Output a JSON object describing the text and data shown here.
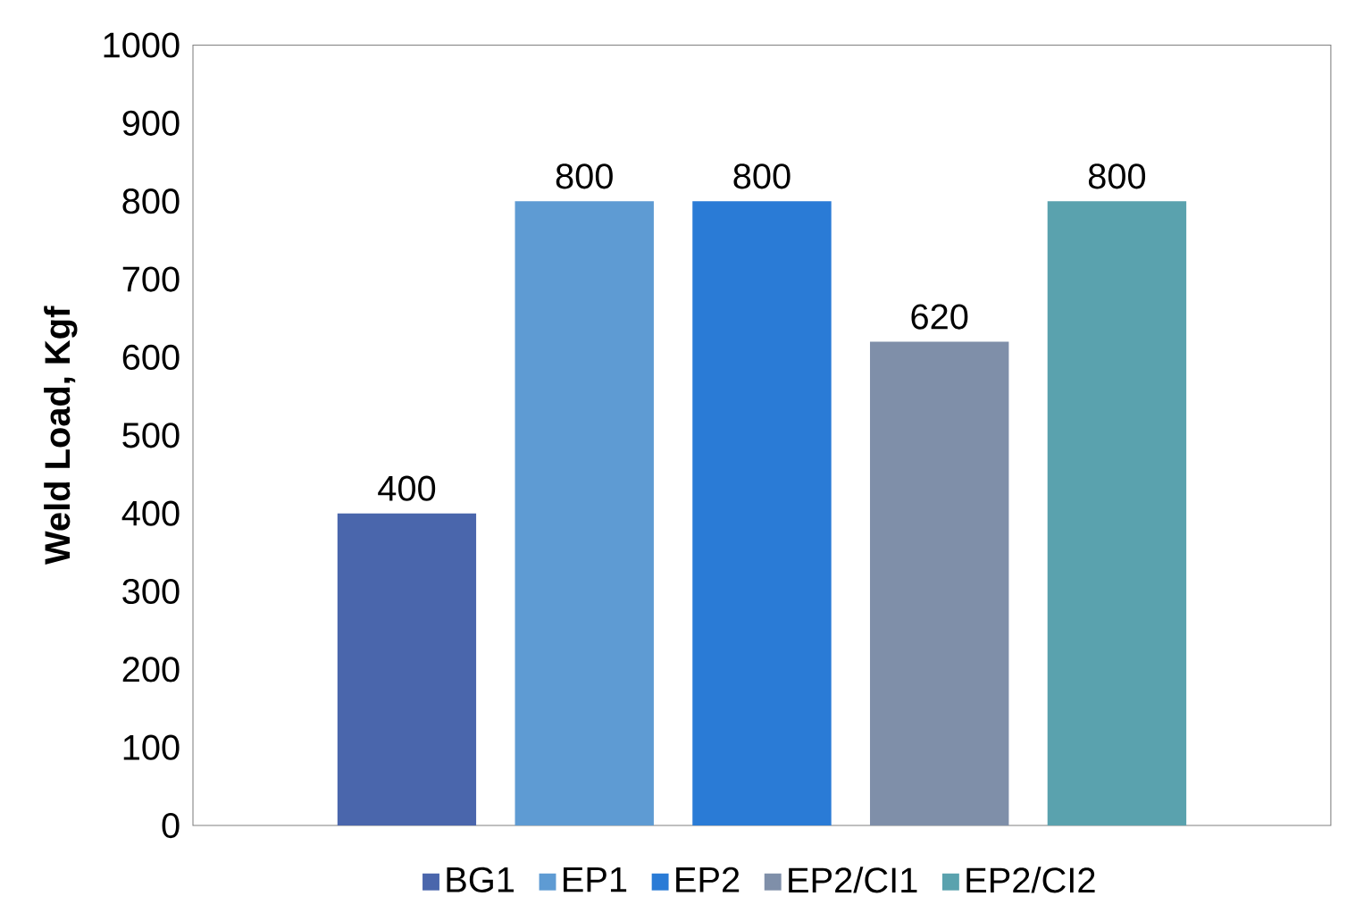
{
  "chart_data": {
    "type": "bar",
    "ylabel": "Weld Load, Kgf",
    "categories": [
      null
    ],
    "series": [
      {
        "name": "BG1",
        "color": "#4a66ac",
        "values": [
          400
        ]
      },
      {
        "name": "EP1",
        "color": "#5e9bd3",
        "values": [
          800
        ]
      },
      {
        "name": "EP2",
        "color": "#2a7bd6",
        "values": [
          800
        ]
      },
      {
        "name": "EP2/CI1",
        "color": "#7f8fa9",
        "values": [
          620
        ]
      },
      {
        "name": "EP2/CI2",
        "color": "#5aa2ae",
        "values": [
          800
        ]
      }
    ],
    "ylim": [
      0,
      1000
    ],
    "yticks": [
      0,
      100,
      200,
      300,
      400,
      500,
      600,
      700,
      800,
      900,
      1000
    ],
    "data_labels": true,
    "legend": "bottom",
    "grid": false
  }
}
